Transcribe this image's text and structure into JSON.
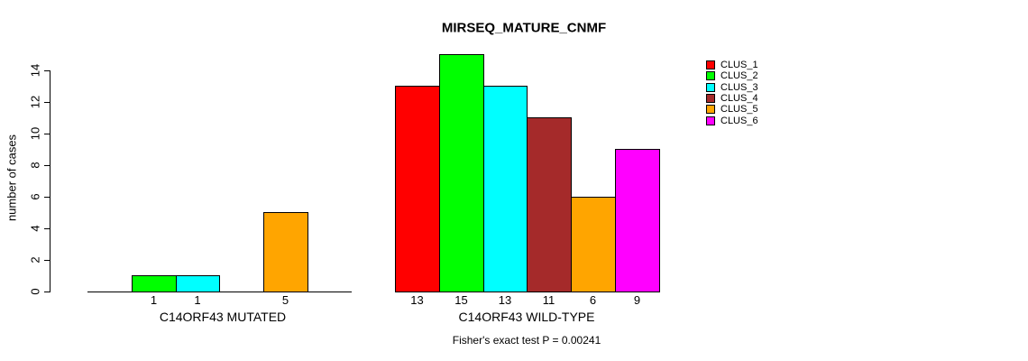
{
  "chart_data": {
    "type": "bar",
    "title": "MIRSEQ_MATURE_CNMF",
    "ylabel": "number of cases",
    "xlabel": "",
    "ylim": [
      0,
      15
    ],
    "yticks": [
      0,
      2,
      4,
      6,
      8,
      10,
      12,
      14
    ],
    "grid": false,
    "legend_position": "right",
    "background": "#FFFFFF",
    "groups": [
      "C14ORF43 MUTATED",
      "C14ORF43 WILD-TYPE"
    ],
    "series": [
      {
        "name": "CLUS_1",
        "color": "#FF0000",
        "values": [
          0,
          13
        ]
      },
      {
        "name": "CLUS_2",
        "color": "#00FF00",
        "values": [
          1,
          15
        ]
      },
      {
        "name": "CLUS_3",
        "color": "#00FFFF",
        "values": [
          1,
          13
        ]
      },
      {
        "name": "CLUS_4",
        "color": "#A52A2A",
        "values": [
          0,
          11
        ]
      },
      {
        "name": "CLUS_5",
        "color": "#FFA500",
        "values": [
          5,
          6
        ]
      },
      {
        "name": "CLUS_6",
        "color": "#FF00FF",
        "values": [
          0,
          9
        ]
      }
    ],
    "bar_value_labels": {
      "shown_below_bars": true,
      "show_zero": false
    },
    "annotation": "Fisher's exact test P = 0.00241"
  }
}
